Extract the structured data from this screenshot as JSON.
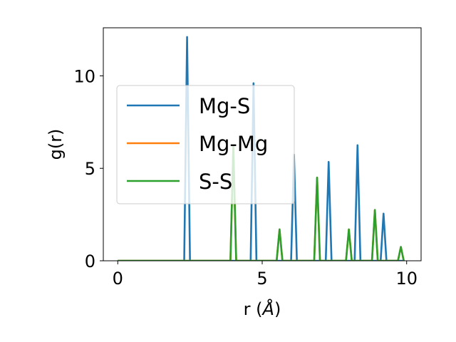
{
  "chart_data": {
    "type": "line",
    "xlabel": "r (",
    "xlabel_unit": "Å",
    "xlabel_close": ")",
    "ylabel": "g(r)",
    "xlim": [
      -0.5,
      10.5
    ],
    "ylim": [
      0,
      12.6
    ],
    "xticks": [
      0,
      5,
      10
    ],
    "yticks": [
      0,
      5,
      10
    ],
    "legend_position": "center-left",
    "series": [
      {
        "name": "Mg-S",
        "color": "#1f77b4",
        "x": [
          0,
          2.3,
          2.4,
          2.5,
          4.6,
          4.7,
          4.8,
          6.0,
          6.1,
          6.2,
          7.2,
          7.3,
          7.4,
          8.2,
          8.3,
          8.4,
          9.1,
          9.2,
          9.3,
          9.9
        ],
        "y": [
          0,
          0,
          12.1,
          0,
          0,
          9.6,
          0,
          0,
          5.75,
          0,
          0,
          5.35,
          0,
          0,
          6.25,
          0,
          0,
          2.55,
          0,
          0
        ]
      },
      {
        "name": "Mg-Mg",
        "color": "#ff7f0e",
        "x": [
          0,
          3.9,
          4.0,
          4.1,
          5.5,
          5.6,
          5.7,
          6.8,
          6.9,
          7.0,
          7.9,
          8.0,
          8.1,
          8.8,
          8.9,
          9.0,
          9.7,
          9.8,
          9.9
        ],
        "y": [
          0,
          0,
          6.2,
          0,
          0,
          1.7,
          0,
          0,
          4.5,
          0,
          0,
          1.7,
          0,
          0,
          2.75,
          0,
          0,
          0.75,
          0
        ]
      },
      {
        "name": "S-S",
        "color": "#2ca02c",
        "x": [
          0,
          3.9,
          4.0,
          4.1,
          5.5,
          5.6,
          5.7,
          6.8,
          6.9,
          7.0,
          7.9,
          8.0,
          8.1,
          8.8,
          8.9,
          9.0,
          9.7,
          9.8,
          9.9
        ],
        "y": [
          0,
          0,
          6.2,
          0,
          0,
          1.7,
          0,
          0,
          4.5,
          0,
          0,
          1.7,
          0,
          0,
          2.75,
          0,
          0,
          0.75,
          0
        ]
      }
    ]
  }
}
